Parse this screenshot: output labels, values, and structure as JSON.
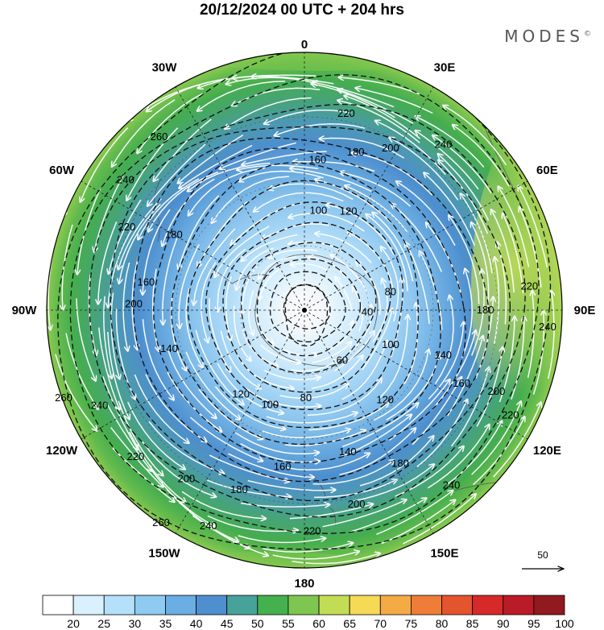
{
  "title": "20/12/2024  00 UTC  + 204 hrs",
  "logo": "MODES",
  "logo_mark": "©",
  "longitude_labels": [
    {
      "text": "0",
      "lon": 0
    },
    {
      "text": "30E",
      "lon": 30
    },
    {
      "text": "60E",
      "lon": 60
    },
    {
      "text": "90E",
      "lon": 90
    },
    {
      "text": "120E",
      "lon": 120
    },
    {
      "text": "150E",
      "lon": 150
    },
    {
      "text": "180",
      "lon": 180
    },
    {
      "text": "150W",
      "lon": -150
    },
    {
      "text": "120W",
      "lon": -120
    },
    {
      "text": "90W",
      "lon": -90
    },
    {
      "text": "60W",
      "lon": -60
    },
    {
      "text": "30W",
      "lon": -30
    }
  ],
  "contour_labels": [
    {
      "text": "220",
      "ang": 12,
      "frac": 0.8
    },
    {
      "text": "180",
      "ang": 18,
      "frac": 0.66
    },
    {
      "text": "200",
      "ang": 28,
      "frac": 0.73
    },
    {
      "text": "240",
      "ang": 40,
      "frac": 0.86
    },
    {
      "text": "160",
      "ang": 5,
      "frac": 0.6
    },
    {
      "text": "120",
      "ang": 24,
      "frac": 0.43
    },
    {
      "text": "100",
      "ang": 8,
      "frac": 0.4
    },
    {
      "text": "80",
      "ang": 78,
      "frac": 0.35
    },
    {
      "text": "40",
      "ang": 92,
      "frac": 0.25
    },
    {
      "text": "180",
      "ang": 90,
      "frac": 0.72
    },
    {
      "text": "220",
      "ang": 84,
      "frac": 0.9
    },
    {
      "text": "240",
      "ang": 94,
      "frac": 0.97
    },
    {
      "text": "140",
      "ang": 108,
      "frac": 0.58
    },
    {
      "text": "100",
      "ang": 112,
      "frac": 0.37
    },
    {
      "text": "60",
      "ang": 143,
      "frac": 0.25
    },
    {
      "text": "160",
      "ang": 115,
      "frac": 0.69
    },
    {
      "text": "200",
      "ang": 113,
      "frac": 0.83
    },
    {
      "text": "120",
      "ang": 138,
      "frac": 0.48
    },
    {
      "text": "220",
      "ang": 117,
      "frac": 0.92
    },
    {
      "text": "80",
      "ang": 179,
      "frac": 0.35
    },
    {
      "text": "140",
      "ang": 163,
      "frac": 0.59
    },
    {
      "text": "180",
      "ang": 148,
      "frac": 0.72
    },
    {
      "text": "200",
      "ang": 165,
      "frac": 0.8
    },
    {
      "text": "240",
      "ang": 140,
      "frac": 0.91
    },
    {
      "text": "220",
      "ang": 178,
      "frac": 0.88
    },
    {
      "text": "160",
      "ang": 188,
      "frac": 0.63
    },
    {
      "text": "100",
      "ang": 200,
      "frac": 0.4
    },
    {
      "text": "120",
      "ang": 217,
      "frac": 0.42
    },
    {
      "text": "180",
      "ang": 200,
      "frac": 0.76
    },
    {
      "text": "200",
      "ang": 215,
      "frac": 0.82
    },
    {
      "text": "240",
      "ang": 204,
      "frac": 0.94
    },
    {
      "text": "260",
      "ang": 214,
      "frac": 1.02
    },
    {
      "text": "220",
      "ang": 229,
      "frac": 0.89
    },
    {
      "text": "240",
      "ang": 245,
      "frac": 0.9
    },
    {
      "text": "260",
      "ang": 250,
      "frac": 1.02
    },
    {
      "text": "140",
      "ang": 254,
      "frac": 0.56
    },
    {
      "text": "200",
      "ang": 272,
      "frac": 0.68
    },
    {
      "text": "160",
      "ang": 280,
      "frac": 0.64
    },
    {
      "text": "220",
      "ang": 295,
      "frac": 0.78
    },
    {
      "text": "180",
      "ang": 300,
      "frac": 0.6
    },
    {
      "text": "240",
      "ang": 306,
      "frac": 0.88
    },
    {
      "text": "260",
      "ang": 320,
      "frac": 0.9
    }
  ],
  "reference_vector": {
    "label": "50"
  },
  "colorbar": {
    "labels": [
      "20",
      "25",
      "30",
      "35",
      "40",
      "45",
      "50",
      "55",
      "60",
      "65",
      "70",
      "75",
      "80",
      "85",
      "90",
      "95",
      "100"
    ],
    "colors": [
      "#ffffff",
      "#d9f0ff",
      "#b5e0fa",
      "#8fcaf0",
      "#6aaee3",
      "#4f8fd0",
      "#47a39a",
      "#45b04e",
      "#7ec64f",
      "#c3dc56",
      "#f6d955",
      "#f5ab45",
      "#ef7d38",
      "#e4542f",
      "#d52a29",
      "#b91b27",
      "#901a1f"
    ]
  }
}
